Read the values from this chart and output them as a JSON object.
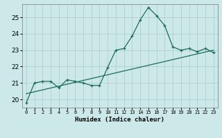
{
  "x": [
    0,
    1,
    2,
    3,
    4,
    5,
    6,
    7,
    8,
    9,
    10,
    11,
    12,
    13,
    14,
    15,
    16,
    17,
    18,
    19,
    20,
    21,
    22,
    23
  ],
  "y_line": [
    19.8,
    21.0,
    21.1,
    21.1,
    20.7,
    21.2,
    21.1,
    21.0,
    20.85,
    20.85,
    21.95,
    23.0,
    23.1,
    23.85,
    24.85,
    25.6,
    25.1,
    24.5,
    23.2,
    23.0,
    23.1,
    22.9,
    23.1,
    22.85
  ],
  "trend_x": [
    0,
    23
  ],
  "trend_y": [
    20.35,
    23.0
  ],
  "line_color": "#1a6b5a",
  "trend_color": "#1a6b5a",
  "background_color": "#cce8e8",
  "grid_color": "#aacccc",
  "xlabel": "Humidex (Indice chaleur)",
  "ylim": [
    19.5,
    25.8
  ],
  "xlim": [
    -0.5,
    23.5
  ],
  "yticks": [
    20,
    21,
    22,
    23,
    24,
    25
  ],
  "xticks": [
    0,
    1,
    2,
    3,
    4,
    5,
    6,
    7,
    8,
    9,
    10,
    11,
    12,
    13,
    14,
    15,
    16,
    17,
    18,
    19,
    20,
    21,
    22,
    23
  ]
}
